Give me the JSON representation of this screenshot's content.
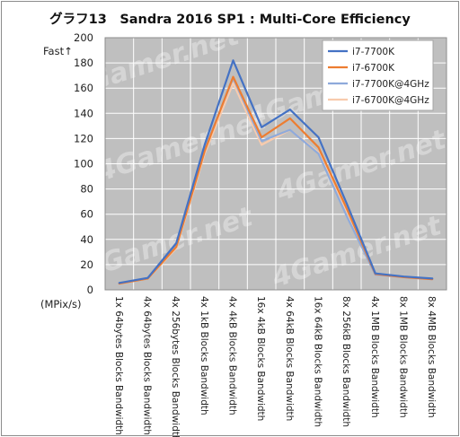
{
  "chart_data": {
    "type": "line",
    "title": "グラフ13　Sandra 2016 SP1 : Multi-Core Efficiency",
    "y_direction_label": "Fast↑",
    "y_unit_label": "(MPix/s)",
    "ylim": [
      0,
      200
    ],
    "y_ticks": [
      0,
      20,
      40,
      60,
      80,
      100,
      120,
      140,
      160,
      180,
      200
    ],
    "grid": true,
    "background_color": "#bfbfbf",
    "legend_position": "top-right",
    "watermark": "4Gamer.net",
    "categories": [
      "1x 64bytes Blocks Bandwidth",
      "4x 64bytes Blocks Bandwidth",
      "4x 256bytes Blocks Bandwidth",
      "4x 1kB Blocks Bandwidth",
      "4x 4kB Blocks Bandwidth",
      "16x 4kB Blocks Bandwidth",
      "4x 64kB Blocks Bandwidth",
      "16x 64kB Blocks Bandwidth",
      "8x 256kB Blocks Bandwidth",
      "4x 1MB Blocks Bandwidth",
      "8x 1MB Blocks Bandwidth",
      "8x 4MB Blocks Bandwidth"
    ],
    "series": [
      {
        "name": "i7-7700K",
        "color": "#4472c4",
        "values": [
          5.5,
          9.5,
          37,
          115,
          182,
          129,
          143,
          121,
          68,
          13,
          10.5,
          9
        ]
      },
      {
        "name": "i7-6700K",
        "color": "#ed7d31",
        "values": [
          5,
          9,
          34,
          110,
          169,
          121,
          136,
          113,
          64,
          12.5,
          10,
          8.5
        ]
      },
      {
        "name": "i7-7700K@4GHz",
        "color": "#8eaadb",
        "values": [
          5.2,
          9.2,
          35,
          112,
          168,
          118,
          127,
          108,
          58,
          12,
          10,
          8.5
        ]
      },
      {
        "name": "i7-6700K@4GHz",
        "color": "#f8cbad",
        "values": [
          5,
          9,
          33,
          108,
          164,
          115,
          127,
          109,
          62,
          12,
          10,
          8.5
        ]
      }
    ]
  }
}
